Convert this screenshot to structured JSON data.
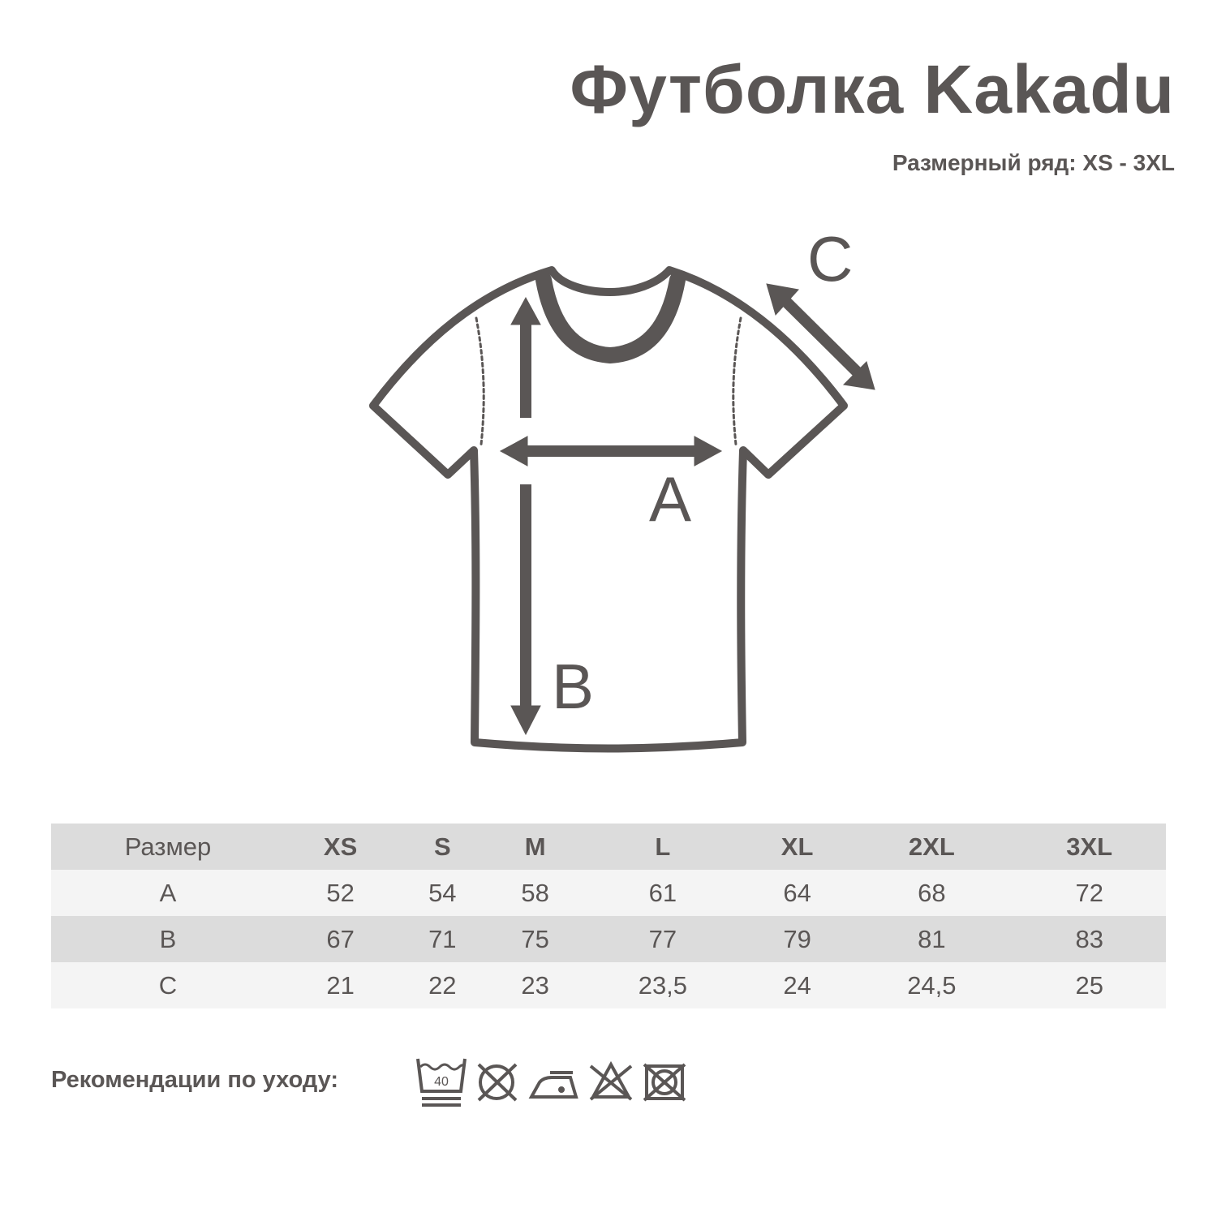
{
  "title": "Футболка Kakadu",
  "subtitle": "Размерный ряд: XS - 3XL",
  "diagram": {
    "label_a": "A",
    "label_b": "B",
    "label_c": "C"
  },
  "colors": {
    "ink": "#5a5655",
    "row_dark": "#dcdcdc",
    "row_light": "#f4f4f4"
  },
  "size_table": {
    "header": [
      "Размер",
      "XS",
      "S",
      "M",
      "L",
      "XL",
      "2XL",
      "3XL"
    ],
    "rows": [
      [
        "A",
        "52",
        "54",
        "58",
        "61",
        "64",
        "68",
        "72"
      ],
      [
        "B",
        "67",
        "71",
        "75",
        "77",
        "79",
        "81",
        "83"
      ],
      [
        "C",
        "21",
        "22",
        "23",
        "23,5",
        "24",
        "24,5",
        "25"
      ]
    ]
  },
  "care": {
    "label": "Рекомендации по уходу:",
    "wash_temp": "40",
    "icons": [
      "wash-40-gentle-icon",
      "no-tumble-dry-icon",
      "iron-low-icon",
      "no-bleach-icon",
      "no-dry-clean-icon"
    ]
  }
}
